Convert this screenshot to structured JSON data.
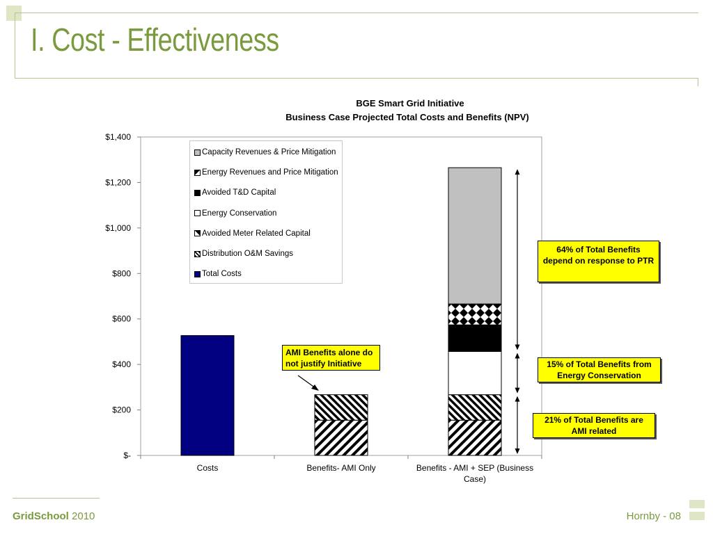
{
  "slide": {
    "title": "I. Cost - Effectiveness",
    "footer_brand_bold": "GridSchool",
    "footer_brand_year": "2010",
    "footer_page": "Hornby  - 08",
    "accent_color": "#7a9a3e",
    "deco_color": "#dfe6c5"
  },
  "chart_data": {
    "type": "bar",
    "stacked": true,
    "title": "BGE Smart Grid Initiative",
    "subtitle": "Business Case Projected Total Costs and Benefits (NPV)",
    "categories": [
      "Costs",
      "Benefits-  AMI Only",
      "Benefits - AMI + SEP (Business Case)"
    ],
    "ylim": [
      0,
      1400
    ],
    "yticks": [
      0,
      200,
      400,
      600,
      800,
      1000,
      1200,
      1400
    ],
    "ytick_labels": [
      "$-",
      "$200",
      "$400",
      "$600",
      "$800",
      "$1,000",
      "$1,200",
      "$1,400"
    ],
    "grid": false,
    "legend_position": "top-left inside plot",
    "series": [
      {
        "name": "Total Costs",
        "pattern": "solid-navy",
        "values": [
          527,
          0,
          0
        ]
      },
      {
        "name": "Distribution O&M Savings",
        "pattern": "diagonal-hatch",
        "values": [
          0,
          155,
          155
        ]
      },
      {
        "name": "Avoided Meter Related Capital",
        "pattern": "dense-diagonal-hatch",
        "values": [
          0,
          112,
          112
        ]
      },
      {
        "name": "Energy Conservation",
        "pattern": "white",
        "values": [
          0,
          0,
          190
        ]
      },
      {
        "name": "Avoided T&D Capital",
        "pattern": "solid-black",
        "values": [
          0,
          0,
          117
        ]
      },
      {
        "name": "Energy Revenues and Price Mitigation",
        "pattern": "diamond-checker",
        "values": [
          0,
          0,
          92
        ]
      },
      {
        "name": "Capacity Revenues & Price Mitigation",
        "pattern": "solid-gray",
        "values": [
          0,
          0,
          599
        ]
      }
    ],
    "legend_order": [
      "Capacity Revenues & Price Mitigation",
      "Energy Revenues and Price Mitigation",
      "Avoided T&D Capital",
      "Energy Conservation",
      "Avoided Meter Related Capital",
      "Distribution O&M Savings",
      "Total Costs"
    ],
    "annotations": [
      {
        "text": "AMI Benefits alone do not justify Initiative"
      },
      {
        "text": "64% of Total Benefits depend on response to PTR"
      },
      {
        "text": "15% of Total Benefits from Energy Conservation"
      },
      {
        "text": "21% of Total Benefits are AMI related"
      }
    ],
    "colors": {
      "navy": "#000080",
      "gray": "#c0c0c0",
      "black": "#000000",
      "white": "#ffffff",
      "callout": "#ffff00"
    }
  }
}
